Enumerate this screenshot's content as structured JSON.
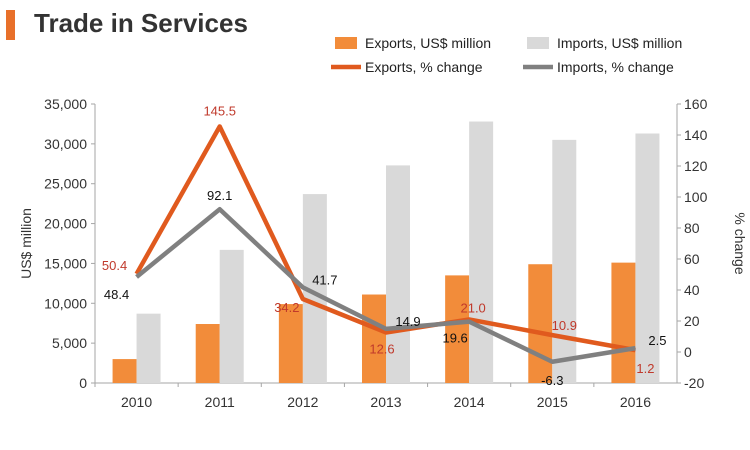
{
  "title": "Trade in Services",
  "chart_data": {
    "type": "bar",
    "categories": [
      "2010",
      "2011",
      "2012",
      "2013",
      "2014",
      "2015",
      "2016"
    ],
    "series": [
      {
        "name": "Exports, US$ million",
        "kind": "bar",
        "axis": "left",
        "color": "#f28c3a",
        "values": [
          3000,
          7400,
          9900,
          11100,
          13500,
          14900,
          15100
        ]
      },
      {
        "name": "Imports, US$ million",
        "kind": "bar",
        "axis": "left",
        "color": "#d9d9d9",
        "values": [
          8700,
          16700,
          23700,
          27300,
          32800,
          30500,
          31300
        ]
      },
      {
        "name": "Exports, % change",
        "kind": "line",
        "axis": "right",
        "color": "#e05a1e",
        "values": [
          50.4,
          145.5,
          34.2,
          12.6,
          21.0,
          10.9,
          1.2
        ],
        "labels": [
          "50.4",
          "145.5",
          "34.2",
          "12.6",
          "21.0",
          "10.9",
          "1.2"
        ],
        "label_color": "#c0392b"
      },
      {
        "name": "Imports, % change",
        "kind": "line",
        "axis": "right",
        "color": "#808080",
        "values": [
          48.4,
          92.1,
          41.7,
          14.9,
          19.6,
          -6.3,
          2.5
        ],
        "labels": [
          "48.4",
          "92.1",
          "41.7",
          "14.9",
          "19.6",
          "-6.3",
          "2.5"
        ],
        "label_color": "#111111"
      }
    ],
    "y_left": {
      "label": "US$ million",
      "min": 0,
      "max": 35000,
      "ticks": [
        "0",
        "5,000",
        "10,000",
        "15,000",
        "20,000",
        "25,000",
        "30,000",
        "35,000"
      ],
      "tick_values": [
        0,
        5000,
        10000,
        15000,
        20000,
        25000,
        30000,
        35000
      ]
    },
    "y_right": {
      "label": "% change",
      "min": -20,
      "max": 160,
      "ticks": [
        "-20",
        "0",
        "20",
        "40",
        "60",
        "80",
        "100",
        "120",
        "140",
        "160"
      ],
      "tick_values": [
        -20,
        0,
        20,
        40,
        60,
        80,
        100,
        120,
        140,
        160
      ]
    },
    "legend": [
      "Exports, US$ million",
      "Imports, US$ million",
      "Exports, % change",
      "Imports, % change"
    ],
    "legend_position": "top-right",
    "grid": false
  }
}
